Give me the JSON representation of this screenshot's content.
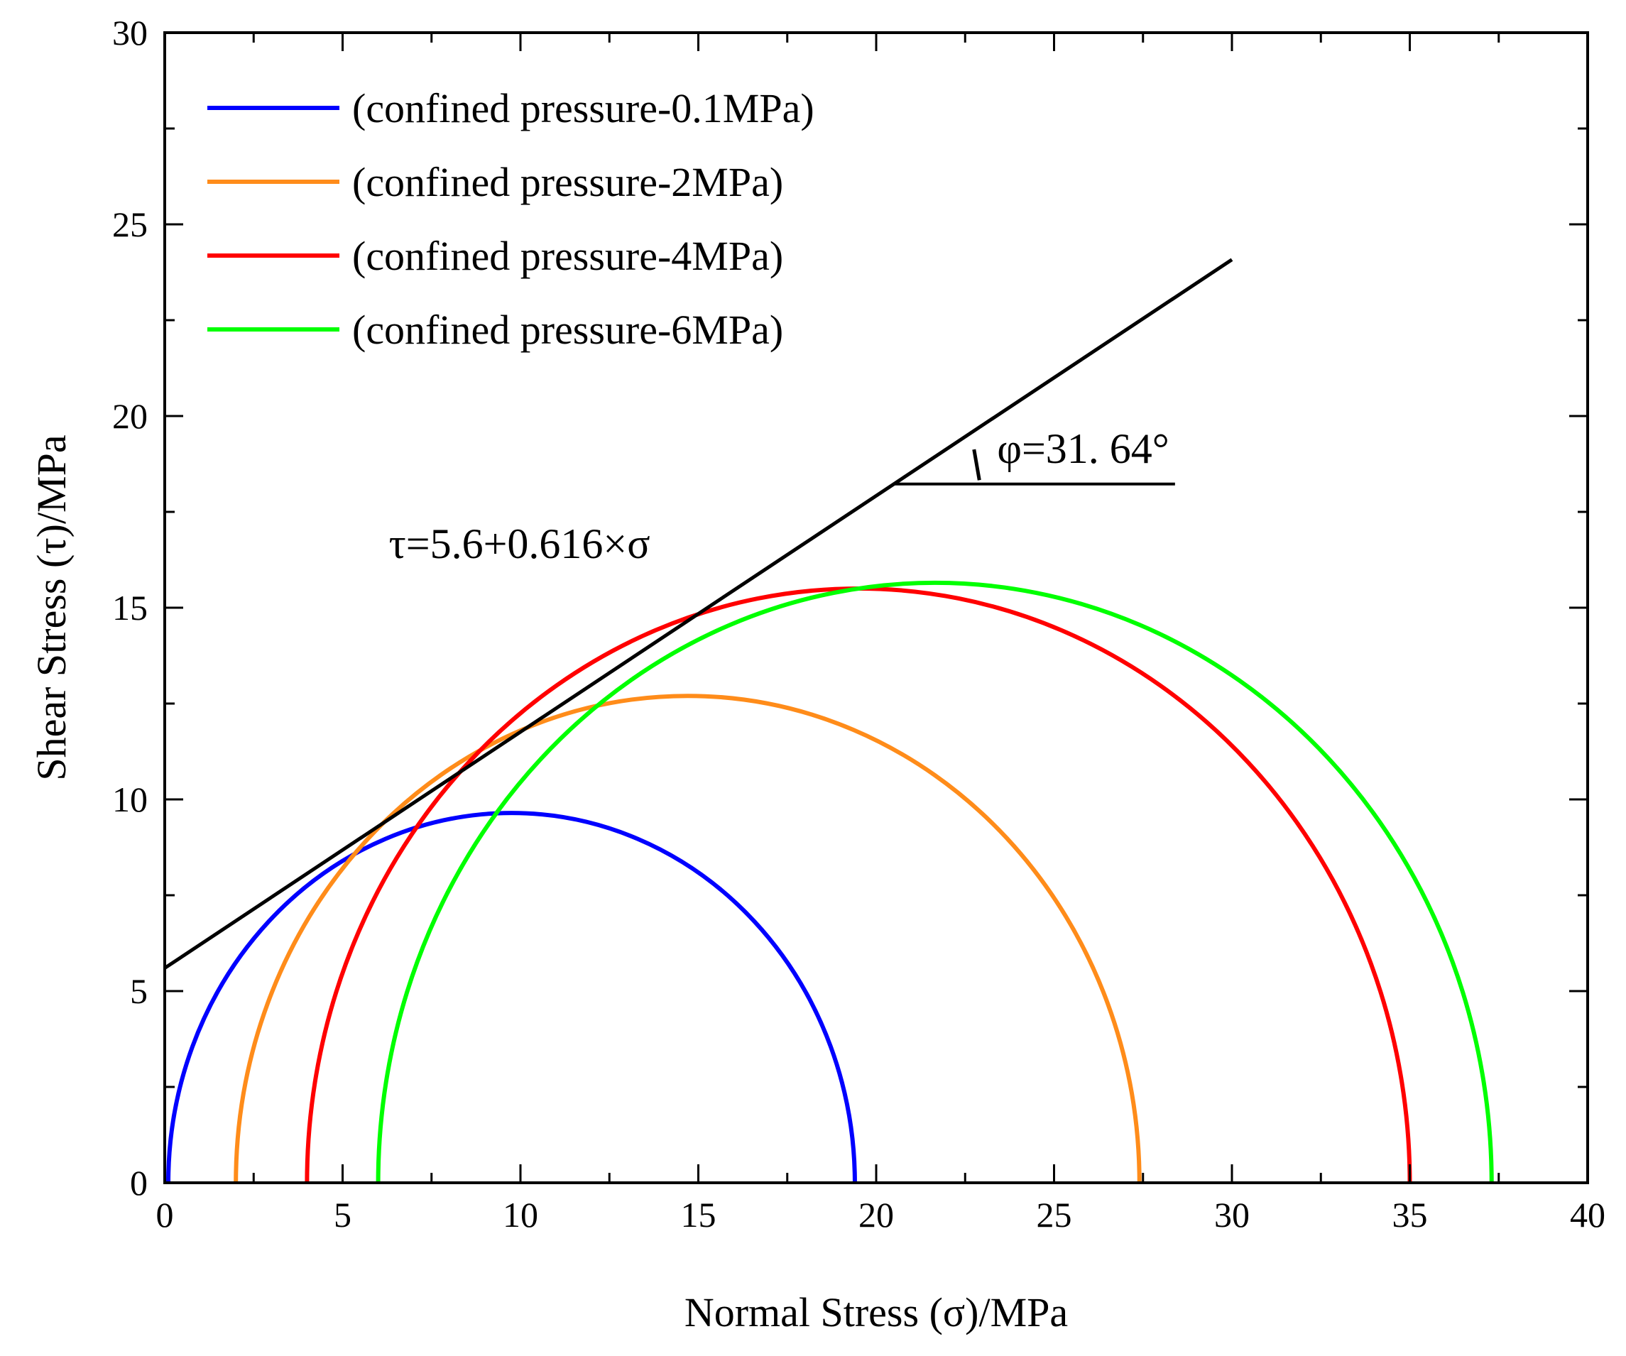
{
  "chart_data": {
    "type": "line",
    "xlabel": "Normal Stress (σ)/MPa",
    "ylabel": "Shear Stress (τ)/MPa",
    "xlim": [
      0,
      40
    ],
    "ylim": [
      0,
      30
    ],
    "xticks": [
      "0",
      "5",
      "10",
      "15",
      "20",
      "25",
      "30",
      "35",
      "40"
    ],
    "yticks": [
      "0",
      "5",
      "10",
      "15",
      "20",
      "25",
      "30"
    ],
    "grid": false,
    "legend_position": "top-left",
    "series": [
      {
        "name": "(confined pressure-0.1MPa)",
        "shape": "semicircle",
        "sigma3": 0.1,
        "sigma1": 19.4,
        "color": "#0000ff"
      },
      {
        "name": "(confined pressure-2MPa)",
        "shape": "semicircle",
        "sigma3": 2.0,
        "sigma1": 27.4,
        "color": "#ff8c1a"
      },
      {
        "name": "(confined pressure-4MPa)",
        "shape": "semicircle",
        "sigma3": 4.0,
        "sigma1": 35.0,
        "color": "#ff0000"
      },
      {
        "name": "(confined pressure-6MPa)",
        "shape": "semicircle",
        "sigma3": 6.0,
        "sigma1": 37.3,
        "color": "#00ff00"
      }
    ],
    "envelope": {
      "equation": "τ=5.6+0.616×σ",
      "intercept": 5.6,
      "slope": 0.616,
      "x_range": [
        0,
        30
      ],
      "color": "#000000"
    },
    "angle_annotation": {
      "text": "φ=31. 64°",
      "vertex_x": 20.5,
      "horizontal_end_x": 28.4
    }
  }
}
